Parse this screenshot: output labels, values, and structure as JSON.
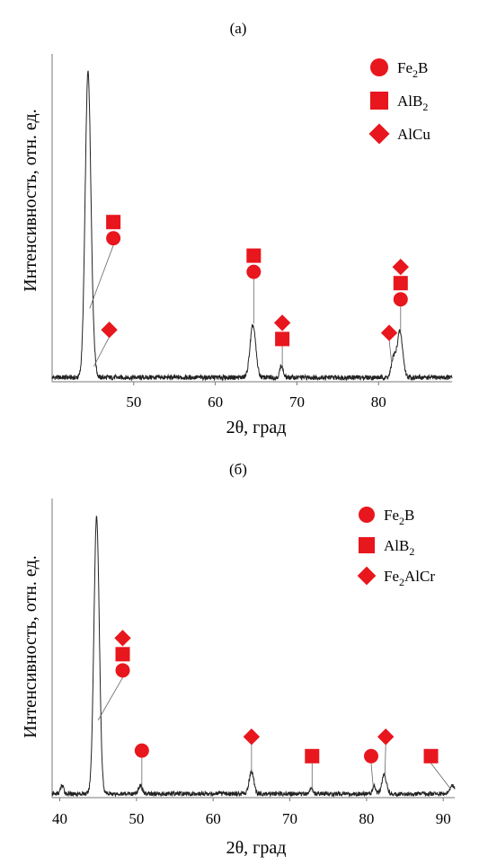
{
  "chart_data": [
    {
      "type": "line",
      "panel_label": "(а)",
      "xlabel": "2θ, град",
      "ylabel": "Интенсивность, отн. ед.",
      "xlim": [
        40,
        89
      ],
      "ylim": [
        0,
        100
      ],
      "ticks": [
        50,
        60,
        70,
        80
      ],
      "peaks": [
        {
          "x": 44.4,
          "y": 100,
          "w": 0.35
        },
        {
          "x": 45.1,
          "y": 4,
          "w": 0.25
        },
        {
          "x": 64.6,
          "y": 17,
          "w": 0.35
        },
        {
          "x": 68.1,
          "y": 4,
          "w": 0.2
        },
        {
          "x": 81.8,
          "y": 6,
          "w": 0.25
        },
        {
          "x": 82.6,
          "y": 15,
          "w": 0.35
        }
      ],
      "legend": [
        {
          "symbol": "circle",
          "label": "Fe",
          "sub": "2",
          "tail": "B"
        },
        {
          "symbol": "square",
          "label": "AlB",
          "sub": "2",
          "tail": ""
        },
        {
          "symbol": "diamond",
          "label": "AlCu",
          "sub": "",
          "tail": ""
        }
      ],
      "markers": [
        {
          "x": 47.5,
          "y": 47,
          "symbols": [
            "square",
            "circle"
          ],
          "line_to": {
            "x": 44.6,
            "y": 24
          }
        },
        {
          "x": 47.0,
          "y": 17,
          "symbols": [
            "diamond"
          ],
          "line_to": {
            "x": 45.1,
            "y": 5
          }
        },
        {
          "x": 64.7,
          "y": 36,
          "symbols": [
            "square",
            "circle"
          ],
          "line_to": {
            "x": 64.7,
            "y": 19
          }
        },
        {
          "x": 68.2,
          "y": 14,
          "symbols": [
            "diamond",
            "square"
          ],
          "line_to": {
            "x": 68.2,
            "y": 4
          }
        },
        {
          "x": 81.3,
          "y": 16,
          "symbols": [
            "diamond"
          ],
          "line_to": {
            "x": 81.6,
            "y": 6
          }
        },
        {
          "x": 82.7,
          "y": 27,
          "symbols": [
            "diamond",
            "square",
            "circle"
          ],
          "line_to": {
            "x": 82.7,
            "y": 16
          }
        }
      ],
      "line_color": "#222222",
      "marker_color": "#e8161d"
    },
    {
      "type": "line",
      "panel_label": "(б)",
      "xlabel": "2θ, град",
      "ylabel": "Интенсивность, отн. ед.",
      "xlim": [
        39,
        91.5
      ],
      "ylim": [
        0,
        100
      ],
      "ticks": [
        40,
        50,
        60,
        70,
        80,
        90
      ],
      "peaks": [
        {
          "x": 44.8,
          "y": 100,
          "w": 0.35
        },
        {
          "x": 40.3,
          "y": 3,
          "w": 0.2
        },
        {
          "x": 50.5,
          "y": 3,
          "w": 0.25
        },
        {
          "x": 65.0,
          "y": 8,
          "w": 0.3
        },
        {
          "x": 72.8,
          "y": 2,
          "w": 0.2
        },
        {
          "x": 81.0,
          "y": 3,
          "w": 0.2
        },
        {
          "x": 82.3,
          "y": 7,
          "w": 0.3
        },
        {
          "x": 91.2,
          "y": 3,
          "w": 0.3
        }
      ],
      "legend": [
        {
          "symbol": "circle",
          "label": "Fe",
          "sub": "2",
          "tail": "B"
        },
        {
          "symbol": "square",
          "label": "AlB",
          "sub": "2",
          "tail": ""
        },
        {
          "symbol": "diamond",
          "label": "Fe",
          "sub": "2",
          "tail": "AlCr"
        }
      ],
      "markers": [
        {
          "x": 48.2,
          "y": 46,
          "symbols": [
            "diamond",
            "square",
            "circle"
          ],
          "line_to": {
            "x": 45.0,
            "y": 28
          }
        },
        {
          "x": 50.7,
          "y": 17,
          "symbols": [
            "circle"
          ],
          "line_to": {
            "x": 50.7,
            "y": 3
          }
        },
        {
          "x": 65.0,
          "y": 22,
          "symbols": [
            "diamond"
          ],
          "line_to": {
            "x": 65.0,
            "y": 9
          }
        },
        {
          "x": 72.9,
          "y": 15,
          "symbols": [
            "square"
          ],
          "line_to": {
            "x": 72.9,
            "y": 2
          }
        },
        {
          "x": 80.6,
          "y": 15,
          "symbols": [
            "circle"
          ],
          "line_to": {
            "x": 80.9,
            "y": 3
          }
        },
        {
          "x": 82.5,
          "y": 22,
          "symbols": [
            "diamond"
          ],
          "line_to": {
            "x": 82.4,
            "y": 8
          }
        },
        {
          "x": 88.4,
          "y": 15,
          "symbols": [
            "square"
          ],
          "line_to": {
            "x": 91.0,
            "y": 3
          }
        }
      ],
      "line_color": "#222222",
      "marker_color": "#e8161d"
    }
  ]
}
